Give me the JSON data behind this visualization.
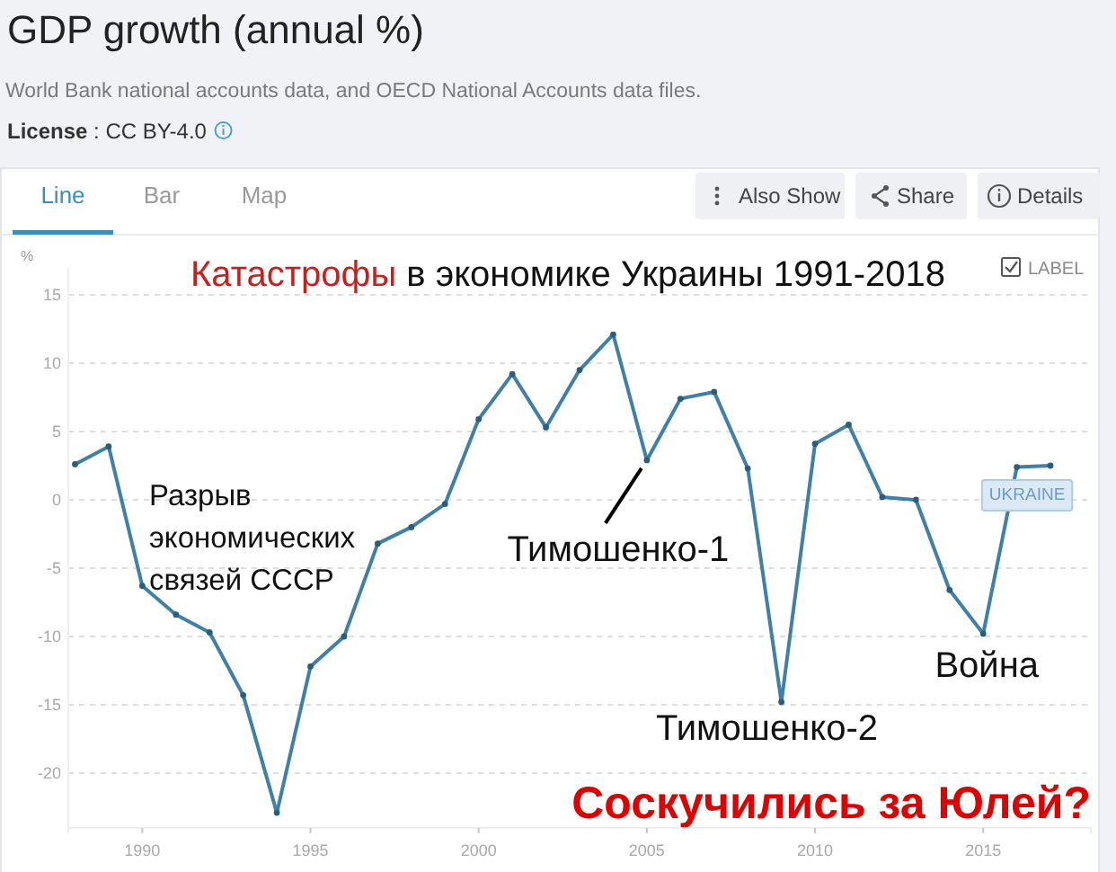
{
  "chart_data": {
    "type": "line",
    "title": "GDP growth (annual %)",
    "subtitle": "World Bank national accounts data, and OECD National Accounts data files.",
    "ylabel": "%",
    "x": [
      1988,
      1989,
      1990,
      1991,
      1992,
      1993,
      1994,
      1995,
      1996,
      1997,
      1998,
      1999,
      2000,
      2001,
      2002,
      2003,
      2004,
      2005,
      2006,
      2007,
      2008,
      2009,
      2010,
      2011,
      2012,
      2013,
      2014,
      2015,
      2016,
      2017
    ],
    "series": [
      {
        "name": "UKRAINE",
        "color": "#3f80a8",
        "values": [
          2.6,
          3.9,
          -6.3,
          -8.4,
          -9.7,
          -14.3,
          -22.9,
          -12.2,
          -10.0,
          -3.2,
          -2.0,
          -0.3,
          5.9,
          9.2,
          5.3,
          9.5,
          12.1,
          2.9,
          7.4,
          7.9,
          2.3,
          -14.8,
          4.1,
          5.5,
          0.2,
          0.0,
          -6.6,
          -9.8,
          2.4,
          2.5
        ]
      }
    ],
    "xlim": [
      1987.8,
      2018.2
    ],
    "xticks": [
      1990,
      1995,
      2000,
      2005,
      2010,
      2015
    ],
    "ylim": [
      -24,
      17
    ],
    "yticks": [
      -20,
      -15,
      -10,
      -5,
      0,
      5,
      10,
      15
    ],
    "grid": "y",
    "marker": "circle",
    "line_style": "solid",
    "annotations": [
      "License : CC BY-4.0",
      "Line",
      "Bar",
      "Map",
      "Also Show",
      "Share",
      "Details",
      "LABEL",
      "Катастрофы в экономике Украины 1991-2018",
      "Разрыв экономических связей СССР",
      {
        "text": "Тимошенко-1",
        "x": 2005,
        "y": 2.9
      },
      {
        "text": "Тимошенко-2",
        "x": 2009,
        "y": -14.8
      },
      {
        "text": "Война",
        "x": 2015,
        "y": -9.8
      },
      "Соскучились за Юлей?"
    ]
  }
}
